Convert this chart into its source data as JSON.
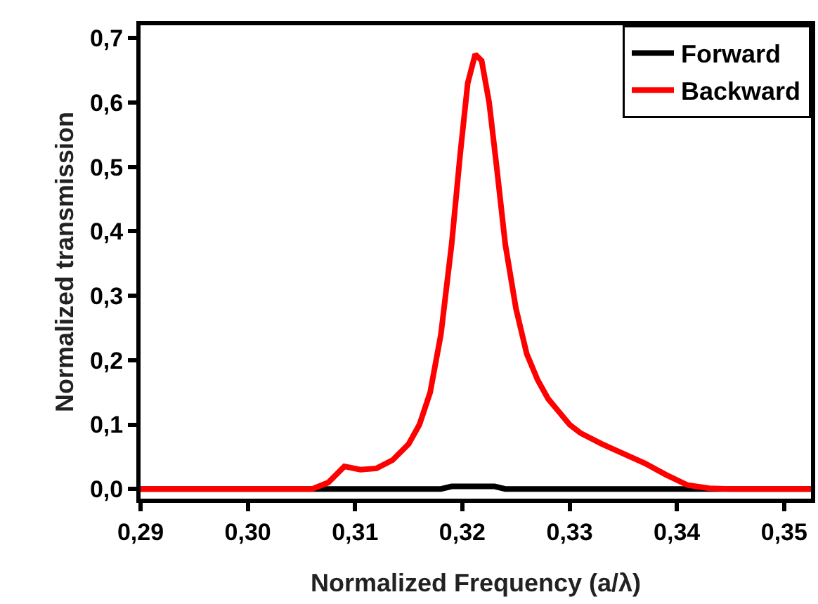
{
  "chart_data": {
    "type": "line",
    "xlabel": "Normalized Frequency (a/λ)",
    "ylabel": "Normalized transmission",
    "xlim": [
      0.29,
      0.3525
    ],
    "ylim": [
      -0.015,
      0.72
    ],
    "xticks": [
      {
        "value": 0.29,
        "label": "0,29"
      },
      {
        "value": 0.3,
        "label": "0,30"
      },
      {
        "value": 0.31,
        "label": "0,31"
      },
      {
        "value": 0.32,
        "label": "0,32"
      },
      {
        "value": 0.33,
        "label": "0,33"
      },
      {
        "value": 0.34,
        "label": "0,34"
      },
      {
        "value": 0.35,
        "label": "0,35"
      }
    ],
    "yticks": [
      {
        "value": 0,
        "label": "0,0"
      },
      {
        "value": 0.1,
        "label": "0,1"
      },
      {
        "value": 0.2,
        "label": "0,2"
      },
      {
        "value": 0.3,
        "label": "0,3"
      },
      {
        "value": 0.4,
        "label": "0,4"
      },
      {
        "value": 0.5,
        "label": "0,5"
      },
      {
        "value": 0.6,
        "label": "0,6"
      },
      {
        "value": 0.7,
        "label": "0,7"
      }
    ],
    "grid": false,
    "legend": "top right",
    "marker": "none",
    "line_style": "solid",
    "series": [
      {
        "name": "Forward",
        "color": "#000000",
        "x": [
          0.29,
          0.318,
          0.319,
          0.323,
          0.324,
          0.3525
        ],
        "values": [
          0,
          0,
          0.004,
          0.004,
          0,
          0
        ]
      },
      {
        "name": "Backward",
        "color": "#ff0000",
        "x": [
          0.29,
          0.306,
          0.3075,
          0.309,
          0.3105,
          0.312,
          0.3135,
          0.315,
          0.316,
          0.317,
          0.318,
          0.319,
          0.3198,
          0.3205,
          0.3212,
          0.3218,
          0.3225,
          0.3232,
          0.324,
          0.325,
          0.326,
          0.327,
          0.328,
          0.329,
          0.33,
          0.331,
          0.333,
          0.335,
          0.337,
          0.339,
          0.341,
          0.343,
          0.345,
          0.3525
        ],
        "values": [
          0,
          0,
          0.01,
          0.035,
          0.03,
          0.032,
          0.045,
          0.07,
          0.1,
          0.15,
          0.24,
          0.38,
          0.52,
          0.63,
          0.675,
          0.665,
          0.6,
          0.5,
          0.38,
          0.28,
          0.21,
          0.17,
          0.14,
          0.12,
          0.1,
          0.087,
          0.07,
          0.055,
          0.04,
          0.022,
          0.006,
          0.001,
          0,
          0
        ]
      }
    ]
  }
}
